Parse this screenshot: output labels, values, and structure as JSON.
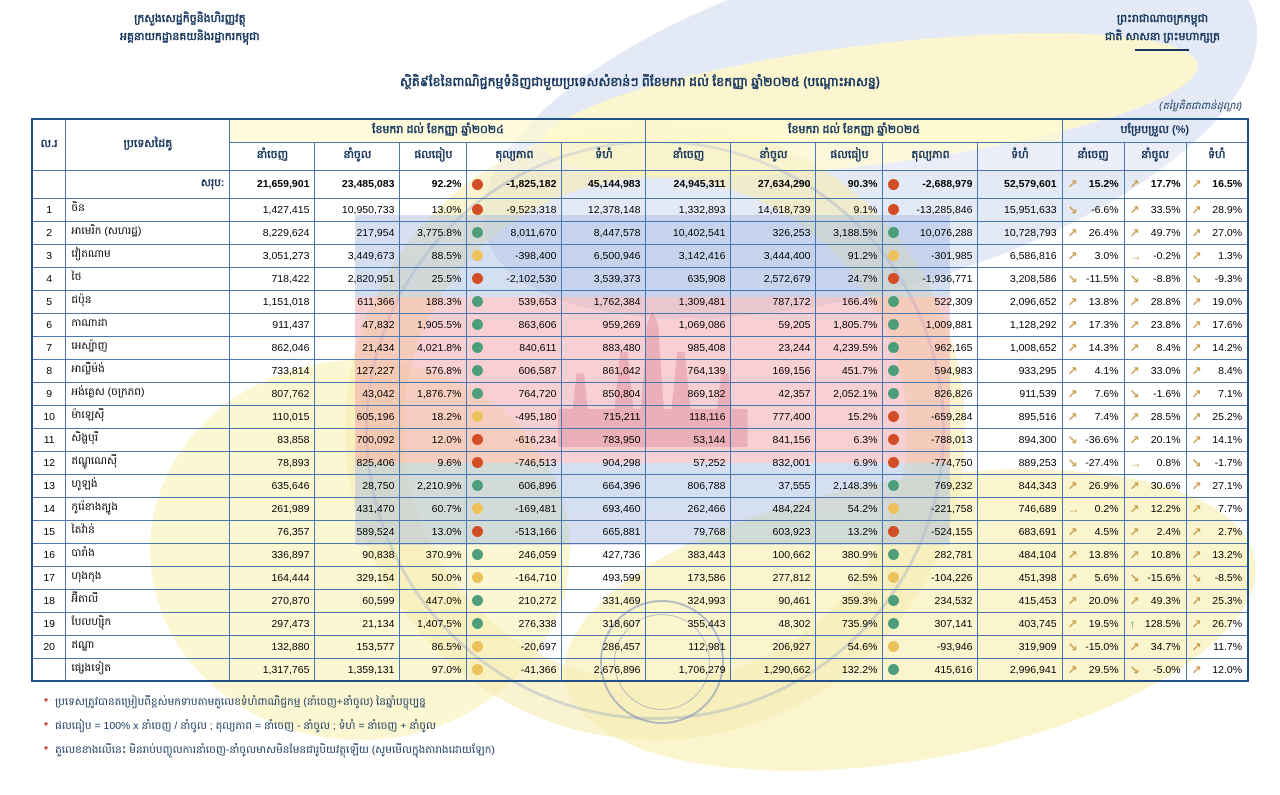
{
  "meta": {
    "ministry_line1": "ក្រសួងសេដ្ឋកិច្ចនិងហិរញ្ញវត្ថុ",
    "ministry_line2": "អគ្គនាយកដ្ឋានគយនិងរដ្ឋាករកម្ពុជា",
    "kingdom_line1": "ព្រះរាជាណាចក្រកម្ពុជា",
    "kingdom_line2": "ជាតិ សាសនា ព្រះមហាក្សត្រ",
    "title": "ស្ថិតិ៩ខែនៃពាណិជ្ជកម្មទំនិញជាមួយប្រទេសសំខាន់ៗ ពីខែមករា ដល់ ខែកញ្ញា ឆ្នាំ២០២៥ (បណ្ដោះអាសន្ន)",
    "unit_note": "(តម្លៃគិតជាពាន់ដុល្លារ)"
  },
  "table": {
    "col_no": "ល.រ",
    "col_country": "ប្រទេសដៃគូ",
    "group_2024": "ខែមករា ដល់ ខែកញ្ញា ឆ្នាំ២០២៤",
    "group_2025": "ខែមករា ដល់ ខែកញ្ញា ឆ្នាំ២០២៥",
    "group_change": "បម្រែបម្រួល (%)",
    "sub": {
      "export": "នាំចេញ",
      "import": "នាំចូល",
      "ratio": "ផលធៀប",
      "balance": "តុល្យភាព",
      "total": "ទំហំ"
    },
    "status_colors": {
      "r": "#d14e26",
      "y": "#edc15c",
      "g": "#4f9e7b"
    },
    "arrow_colors": {
      "default": "#c9a052",
      "strong_up": "#3d9b70"
    },
    "rows": [
      {
        "no": "",
        "country": "សរុប:",
        "summary": true,
        "y24": [
          "21,659,901",
          "23,485,083",
          "92.2%",
          "r",
          "-1,825,182",
          "45,144,983"
        ],
        "y25": [
          "24,945,311",
          "27,634,290",
          "90.3%",
          "r",
          "-2,688,979",
          "52,579,601"
        ],
        "chg": [
          [
            "u",
            "15.2%"
          ],
          [
            "u",
            "17.7%"
          ],
          [
            "u",
            "16.5%"
          ]
        ]
      },
      {
        "no": "1",
        "country": "ចិន",
        "y24": [
          "1,427,415",
          "10,950,733",
          "13.0%",
          "r",
          "-9,523,318",
          "12,378,148"
        ],
        "y25": [
          "1,332,893",
          "14,618,739",
          "9.1%",
          "r",
          "-13,285,846",
          "15,951,633"
        ],
        "chg": [
          [
            "d",
            "-6.6%"
          ],
          [
            "u",
            "33.5%"
          ],
          [
            "u",
            "28.9%"
          ]
        ]
      },
      {
        "no": "2",
        "country": "អាមេរិក (សហរដ្ឋ)",
        "y24": [
          "8,229,624",
          "217,954",
          "3,775.8%",
          "g",
          "8,011,670",
          "8,447,578"
        ],
        "y25": [
          "10,402,541",
          "326,253",
          "3,188.5%",
          "g",
          "10,076,288",
          "10,728,793"
        ],
        "chg": [
          [
            "u",
            "26.4%"
          ],
          [
            "u",
            "49.7%"
          ],
          [
            "u",
            "27.0%"
          ]
        ]
      },
      {
        "no": "3",
        "country": "វៀតណាម",
        "y24": [
          "3,051,273",
          "3,449,673",
          "88.5%",
          "y",
          "-398,400",
          "6,500,946"
        ],
        "y25": [
          "3,142,416",
          "3,444,400",
          "91.2%",
          "y",
          "-301,985",
          "6,586,816"
        ],
        "chg": [
          [
            "u",
            "3.0%"
          ],
          [
            "f",
            "-0.2%"
          ],
          [
            "u",
            "1.3%"
          ]
        ]
      },
      {
        "no": "4",
        "country": "ថៃ",
        "y24": [
          "718,422",
          "2,820,951",
          "25.5%",
          "r",
          "-2,102,530",
          "3,539,373"
        ],
        "y25": [
          "635,908",
          "2,572,679",
          "24.7%",
          "r",
          "-1,936,771",
          "3,208,586"
        ],
        "chg": [
          [
            "d",
            "-11.5%"
          ],
          [
            "d",
            "-8.8%"
          ],
          [
            "d",
            "-9.3%"
          ]
        ]
      },
      {
        "no": "5",
        "country": "ជប៉ុន",
        "y24": [
          "1,151,018",
          "611,366",
          "188.3%",
          "g",
          "539,653",
          "1,762,384"
        ],
        "y25": [
          "1,309,481",
          "787,172",
          "166.4%",
          "g",
          "522,309",
          "2,096,652"
        ],
        "chg": [
          [
            "u",
            "13.8%"
          ],
          [
            "u",
            "28.8%"
          ],
          [
            "u",
            "19.0%"
          ]
        ]
      },
      {
        "no": "6",
        "country": "កាណាដា",
        "y24": [
          "911,437",
          "47,832",
          "1,905.5%",
          "g",
          "863,606",
          "959,269"
        ],
        "y25": [
          "1,069,086",
          "59,205",
          "1,805.7%",
          "g",
          "1,009,881",
          "1,128,292"
        ],
        "chg": [
          [
            "u",
            "17.3%"
          ],
          [
            "u",
            "23.8%"
          ],
          [
            "u",
            "17.6%"
          ]
        ]
      },
      {
        "no": "7",
        "country": "អេស្ប៉ាញ",
        "y24": [
          "862,046",
          "21,434",
          "4,021.8%",
          "g",
          "840,611",
          "883,480"
        ],
        "y25": [
          "985,408",
          "23,244",
          "4,239.5%",
          "g",
          "962,165",
          "1,008,652"
        ],
        "chg": [
          [
            "u",
            "14.3%"
          ],
          [
            "u",
            "8.4%"
          ],
          [
            "u",
            "14.2%"
          ]
        ]
      },
      {
        "no": "8",
        "country": "អាល្លឺម៉ង់",
        "y24": [
          "733,814",
          "127,227",
          "576.8%",
          "g",
          "606,587",
          "861,042"
        ],
        "y25": [
          "764,139",
          "169,156",
          "451.7%",
          "g",
          "594,983",
          "933,295"
        ],
        "chg": [
          [
            "u",
            "4.1%"
          ],
          [
            "u",
            "33.0%"
          ],
          [
            "u",
            "8.4%"
          ]
        ]
      },
      {
        "no": "9",
        "country": "អង់គ្លេស (ចក្រភព)",
        "y24": [
          "807,762",
          "43,042",
          "1,876.7%",
          "g",
          "764,720",
          "850,804"
        ],
        "y25": [
          "869,182",
          "42,357",
          "2,052.1%",
          "g",
          "826,826",
          "911,539"
        ],
        "chg": [
          [
            "u",
            "7.6%"
          ],
          [
            "d",
            "-1.6%"
          ],
          [
            "u",
            "7.1%"
          ]
        ]
      },
      {
        "no": "10",
        "country": "ម៉ាឡេស៊ី",
        "y24": [
          "110,015",
          "605,196",
          "18.2%",
          "y",
          "-495,180",
          "715,211"
        ],
        "y25": [
          "118,116",
          "777,400",
          "15.2%",
          "r",
          "-659,284",
          "895,516"
        ],
        "chg": [
          [
            "u",
            "7.4%"
          ],
          [
            "u",
            "28.5%"
          ],
          [
            "u",
            "25.2%"
          ]
        ]
      },
      {
        "no": "11",
        "country": "សិង្ហបុរី",
        "y24": [
          "83,858",
          "700,092",
          "12.0%",
          "r",
          "-616,234",
          "783,950"
        ],
        "y25": [
          "53,144",
          "841,156",
          "6.3%",
          "r",
          "-788,013",
          "894,300"
        ],
        "chg": [
          [
            "d",
            "-36.6%"
          ],
          [
            "u",
            "20.1%"
          ],
          [
            "u",
            "14.1%"
          ]
        ]
      },
      {
        "no": "12",
        "country": "ឥណ្ឌូណេស៊ី",
        "y24": [
          "78,893",
          "825,406",
          "9.6%",
          "r",
          "-746,513",
          "904,298"
        ],
        "y25": [
          "57,252",
          "832,001",
          "6.9%",
          "r",
          "-774,750",
          "889,253"
        ],
        "chg": [
          [
            "d",
            "-27.4%"
          ],
          [
            "f",
            "0.8%"
          ],
          [
            "d",
            "-1.7%"
          ]
        ]
      },
      {
        "no": "13",
        "country": "ហូឡង់",
        "y24": [
          "635,646",
          "28,750",
          "2,210.9%",
          "g",
          "606,896",
          "664,396"
        ],
        "y25": [
          "806,788",
          "37,555",
          "2,148.3%",
          "g",
          "769,232",
          "844,343"
        ],
        "chg": [
          [
            "u",
            "26.9%"
          ],
          [
            "u",
            "30.6%"
          ],
          [
            "u",
            "27.1%"
          ]
        ]
      },
      {
        "no": "14",
        "country": "កូរ៉េខាងត្បូង",
        "y24": [
          "261,989",
          "431,470",
          "60.7%",
          "y",
          "-169,481",
          "693,460"
        ],
        "y25": [
          "262,466",
          "484,224",
          "54.2%",
          "y",
          "-221,758",
          "746,689"
        ],
        "chg": [
          [
            "f",
            "0.2%"
          ],
          [
            "u",
            "12.2%"
          ],
          [
            "u",
            "7.7%"
          ]
        ]
      },
      {
        "no": "15",
        "country": "តៃវ៉ាន់",
        "y24": [
          "76,357",
          "589,524",
          "13.0%",
          "r",
          "-513,166",
          "665,881"
        ],
        "y25": [
          "79,768",
          "603,923",
          "13.2%",
          "r",
          "-524,155",
          "683,691"
        ],
        "chg": [
          [
            "u",
            "4.5%"
          ],
          [
            "u",
            "2.4%"
          ],
          [
            "u",
            "2.7%"
          ]
        ]
      },
      {
        "no": "16",
        "country": "បារាំង",
        "y24": [
          "336,897",
          "90,838",
          "370.9%",
          "g",
          "246,059",
          "427,736"
        ],
        "y25": [
          "383,443",
          "100,662",
          "380.9%",
          "g",
          "282,781",
          "484,104"
        ],
        "chg": [
          [
            "u",
            "13.8%"
          ],
          [
            "u",
            "10.8%"
          ],
          [
            "u",
            "13.2%"
          ]
        ]
      },
      {
        "no": "17",
        "country": "ហុងកុង",
        "y24": [
          "164,444",
          "329,154",
          "50.0%",
          "y",
          "-164,710",
          "493,599"
        ],
        "y25": [
          "173,586",
          "277,812",
          "62.5%",
          "y",
          "-104,226",
          "451,398"
        ],
        "chg": [
          [
            "u",
            "5.6%"
          ],
          [
            "d",
            "-15.6%"
          ],
          [
            "d",
            "-8.5%"
          ]
        ]
      },
      {
        "no": "18",
        "country": "អ៊ីតាលី",
        "y24": [
          "270,870",
          "60,599",
          "447.0%",
          "g",
          "210,272",
          "331,469"
        ],
        "y25": [
          "324,993",
          "90,461",
          "359.3%",
          "g",
          "234,532",
          "415,453"
        ],
        "chg": [
          [
            "u",
            "20.0%"
          ],
          [
            "u",
            "49.3%"
          ],
          [
            "u",
            "25.3%"
          ]
        ]
      },
      {
        "no": "19",
        "country": "បែលហ្ស៊ិក",
        "y24": [
          "297,473",
          "21,134",
          "1,407.5%",
          "g",
          "276,338",
          "318,607"
        ],
        "y25": [
          "355,443",
          "48,302",
          "735.9%",
          "g",
          "307,141",
          "403,745"
        ],
        "chg": [
          [
            "u",
            "19.5%"
          ],
          [
            "U",
            "128.5%"
          ],
          [
            "u",
            "26.7%"
          ]
        ]
      },
      {
        "no": "20",
        "country": "ឥណ្ឌា",
        "y24": [
          "132,880",
          "153,577",
          "86.5%",
          "y",
          "-20,697",
          "286,457"
        ],
        "y25": [
          "112,981",
          "206,927",
          "54.6%",
          "y",
          "-93,946",
          "319,909"
        ],
        "chg": [
          [
            "d",
            "-15.0%"
          ],
          [
            "u",
            "34.7%"
          ],
          [
            "u",
            "11.7%"
          ]
        ]
      },
      {
        "no": "",
        "country": "ផ្សេងទៀត",
        "y24": [
          "1,317,765",
          "1,359,131",
          "97.0%",
          "y",
          "-41,366",
          "2,676,896"
        ],
        "y25": [
          "1,706,279",
          "1,290,662",
          "132.2%",
          "g",
          "415,616",
          "2,996,941"
        ],
        "chg": [
          [
            "u",
            "29.5%"
          ],
          [
            "d",
            "-5.0%"
          ],
          [
            "u",
            "12.0%"
          ]
        ]
      }
    ]
  },
  "notes": [
    "ប្រទេសត្រូវបានតម្រៀបពីខ្ពស់មកទាបតាមតួលេខទំហំពាណិជ្ជកម្ម (នាំចេញ+នាំចូល) នៃឆ្នាំបច្ចុប្បន្ន",
    "ផលធៀប = 100% x នាំចេញ / នាំចូល ; តុល្យភាព = នាំចេញ - នាំចូល ; ទំហំ = នាំចេញ + នាំចូល",
    "តួលេខខាងលើនេះ មិនរាប់បញ្ចូលការនាំចេញ-នាំចូលមាសមិនមែនជារូបិយវត្ថុឡើយ (សូមមើលក្នុងតារាងដោយឡែក)"
  ]
}
